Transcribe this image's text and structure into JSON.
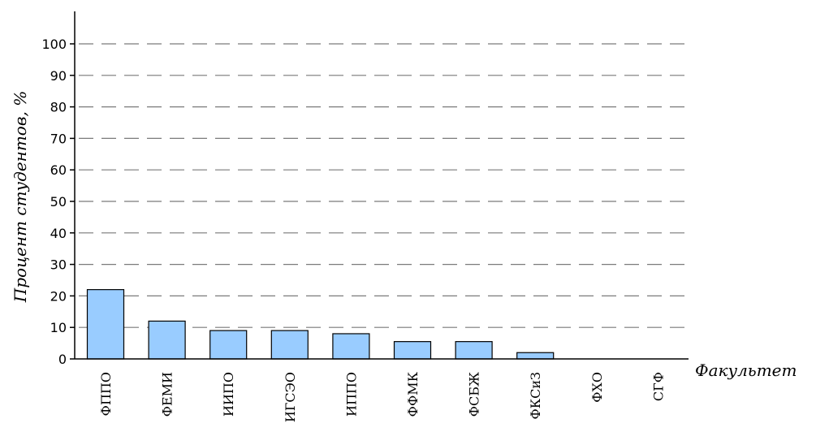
{
  "chart_data": {
    "type": "bar",
    "categories": [
      "ФППО",
      "ФЕМИ",
      "ИИПО",
      "ИГСЭО",
      "ИППО",
      "ФФМК",
      "ФСБЖ",
      "ФКСиЗ",
      "ФХО",
      "СГФ"
    ],
    "values": [
      22,
      12,
      9,
      9,
      8,
      5.5,
      5.5,
      2,
      0,
      0
    ],
    "xlabel": "Факультет",
    "ylabel": "Процент студентов, %",
    "ylim": [
      0,
      100
    ],
    "yticks": [
      0,
      10,
      20,
      30,
      40,
      50,
      60,
      70,
      80,
      90,
      100
    ],
    "grid": true,
    "bar_color": "#99ccff",
    "edge_color": "#000000"
  }
}
